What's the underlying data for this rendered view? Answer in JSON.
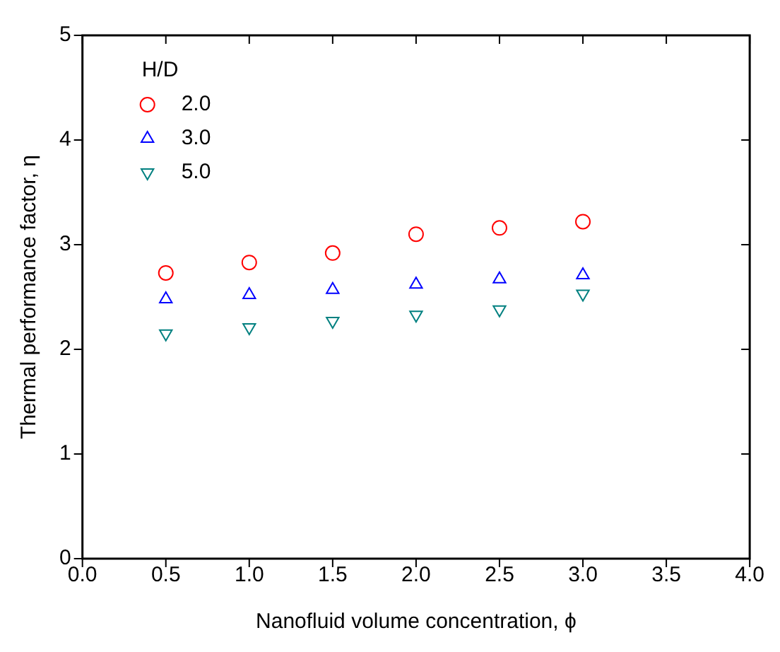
{
  "chart_data": {
    "type": "scatter",
    "xlabel": "Nanofluid volume concentration, ϕ",
    "ylabel": "Thermal performance factor, η",
    "legend_title": "H/D",
    "legend": "top left",
    "grid": false,
    "x": [
      0.5,
      1.0,
      1.5,
      2.0,
      2.5,
      3.0
    ],
    "xlim": [
      0,
      4
    ],
    "xticks": [
      {
        "value": 0,
        "label": "0.0"
      },
      {
        "value": 0.5,
        "label": "0.5"
      },
      {
        "value": 1,
        "label": "1.0"
      },
      {
        "value": 1.5,
        "label": "1.5"
      },
      {
        "value": 2,
        "label": "2.0"
      },
      {
        "value": 2.5,
        "label": "2.5"
      },
      {
        "value": 3,
        "label": "3.0"
      },
      {
        "value": 3.5,
        "label": "3.5"
      },
      {
        "value": 4,
        "label": "4.0"
      }
    ],
    "ylim": [
      0,
      5
    ],
    "yticks": [
      0,
      1,
      2,
      3,
      4,
      5
    ],
    "series": [
      {
        "name": "2.0",
        "color": "#ff0000",
        "marker": "circle",
        "values": [
          2.73,
          2.83,
          2.92,
          3.1,
          3.16,
          3.22
        ]
      },
      {
        "name": "3.0",
        "color": "#0000ff",
        "marker": "triangle",
        "values": [
          2.48,
          2.52,
          2.57,
          2.62,
          2.67,
          2.71
        ]
      },
      {
        "name": "5.0",
        "color": "#008080",
        "marker": "triangle-down",
        "values": [
          2.15,
          2.21,
          2.27,
          2.33,
          2.38,
          2.53
        ]
      }
    ]
  }
}
